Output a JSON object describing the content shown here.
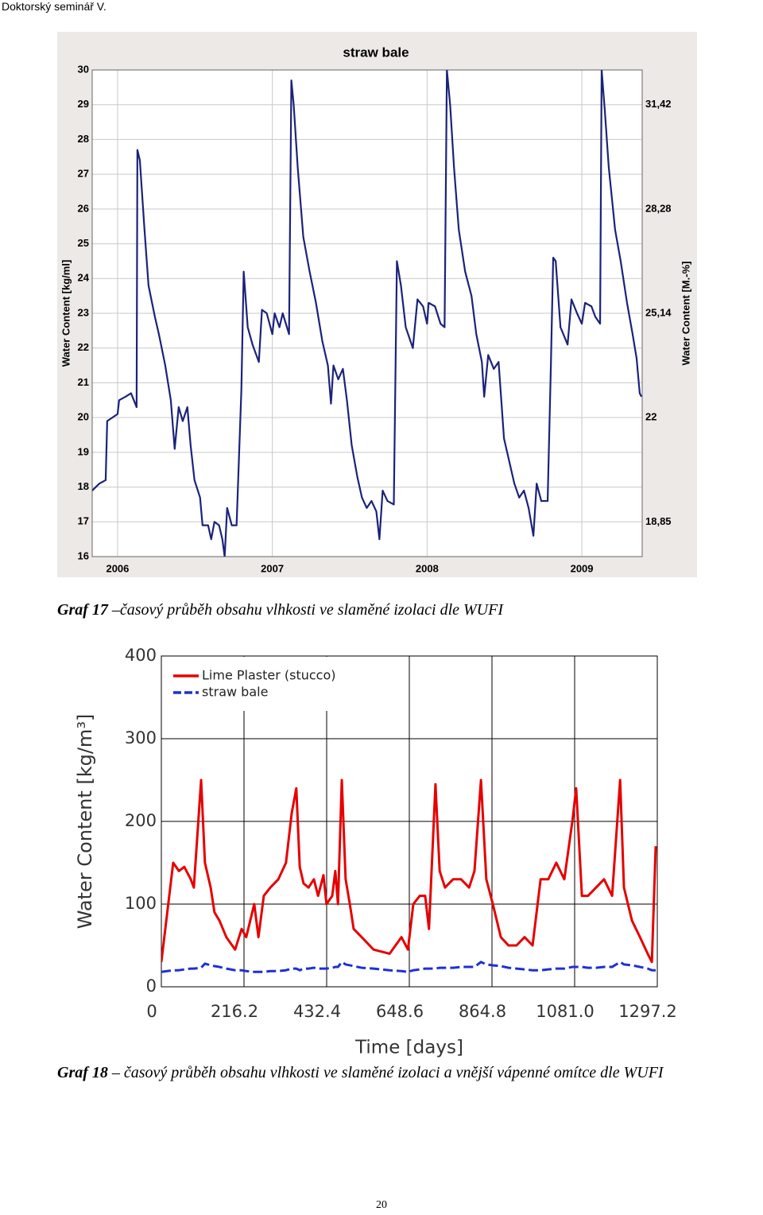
{
  "header": "Doktorský seminář V.",
  "chart_data": [
    {
      "type": "line",
      "title": "straw bale",
      "y_label": "Water Content [kg/ml]",
      "y2_label": "Water Content [M.-%]",
      "x": [
        2005.836,
        2005.882,
        2005.923,
        2005.933,
        2006.0,
        2006.01,
        2006.051,
        2006.087,
        2006.123,
        2006.128,
        2006.144,
        2006.174,
        2006.2,
        2006.241,
        2006.267,
        2006.308,
        2006.344,
        2006.369,
        2006.395,
        2006.421,
        2006.451,
        2006.472,
        2006.497,
        2006.533,
        2006.549,
        2006.585,
        2006.605,
        2006.626,
        2006.656,
        2006.677,
        2006.692,
        2006.708,
        2006.738,
        2006.769,
        2006.8,
        2006.815,
        2006.841,
        2006.872,
        2006.913,
        2006.933,
        2006.964,
        2007.0,
        2007.015,
        2007.046,
        2007.067,
        2007.108,
        2007.123,
        2007.138,
        2007.164,
        2007.2,
        2007.241,
        2007.282,
        2007.323,
        2007.359,
        2007.379,
        2007.395,
        2007.426,
        2007.456,
        2007.482,
        2007.513,
        2007.549,
        2007.579,
        2007.61,
        2007.641,
        2007.672,
        2007.692,
        2007.713,
        2007.744,
        2007.785,
        2007.805,
        2007.831,
        2007.862,
        2007.908,
        2007.938,
        2007.974,
        2008.0,
        2008.01,
        2008.051,
        2008.087,
        2008.113,
        2008.128,
        2008.149,
        2008.174,
        2008.205,
        2008.246,
        2008.287,
        2008.318,
        2008.354,
        2008.369,
        2008.395,
        2008.431,
        2008.462,
        2008.497,
        2008.533,
        2008.564,
        2008.595,
        2008.626,
        2008.656,
        2008.687,
        2008.708,
        2008.738,
        2008.779,
        2008.8,
        2008.815,
        2008.831,
        2008.862,
        2008.908,
        2008.933,
        2008.969,
        2009.0,
        2009.021,
        2009.062,
        2009.087,
        2009.118,
        2009.128,
        2009.149,
        2009.174,
        2009.215,
        2009.251,
        2009.292,
        2009.328,
        2009.354,
        2009.374,
        2009.385
      ],
      "series": [
        {
          "color": "#1b237a",
          "line_style": "solid",
          "values": [
            17.9,
            18.1,
            18.2,
            19.9,
            20.1,
            20.5,
            20.6,
            20.7,
            20.3,
            27.7,
            27.4,
            25.4,
            23.8,
            22.9,
            22.4,
            21.5,
            20.5,
            19.1,
            20.3,
            19.9,
            20.3,
            19.2,
            18.2,
            17.7,
            16.9,
            16.9,
            16.5,
            17.0,
            16.9,
            16.5,
            16.0,
            17.4,
            16.9,
            16.9,
            20.8,
            24.2,
            22.6,
            22.1,
            21.6,
            23.1,
            23.0,
            22.4,
            23.0,
            22.6,
            23.0,
            22.4,
            29.7,
            29.0,
            27.2,
            25.2,
            24.2,
            23.3,
            22.2,
            21.5,
            20.4,
            21.5,
            21.1,
            21.4,
            20.5,
            19.2,
            18.3,
            17.7,
            17.4,
            17.6,
            17.3,
            16.5,
            17.9,
            17.6,
            17.5,
            24.5,
            23.8,
            22.6,
            22.0,
            23.4,
            23.2,
            22.7,
            23.3,
            23.2,
            22.7,
            22.6,
            30.0,
            29.0,
            27.2,
            25.4,
            24.2,
            23.5,
            22.4,
            21.6,
            20.6,
            21.8,
            21.4,
            21.6,
            19.4,
            18.7,
            18.1,
            17.7,
            17.9,
            17.4,
            16.6,
            18.1,
            17.6,
            17.6,
            21.5,
            24.6,
            24.5,
            22.6,
            22.1,
            23.4,
            23.0,
            22.7,
            23.3,
            23.2,
            22.9,
            22.7,
            30.0,
            28.8,
            27.2,
            25.4,
            24.5,
            23.3,
            22.4,
            21.7,
            20.7,
            20.6
          ]
        }
      ],
      "xlim": [
        2005.836,
        2009.39
      ],
      "xticks": [
        2006,
        2007,
        2008,
        2009
      ],
      "ylim": [
        16,
        30
      ],
      "yticks": [
        16,
        17,
        18,
        19,
        20,
        21,
        22,
        23,
        24,
        25,
        26,
        27,
        28,
        29,
        30
      ],
      "y2lim": [
        17.813,
        32.467
      ],
      "y2ticks": [
        {
          "value": 18.85,
          "label": "18,85"
        },
        22,
        {
          "value": 25.14,
          "label": "25,14"
        },
        {
          "value": 28.28,
          "label": "28,28"
        },
        {
          "value": 31.42,
          "label": "31,42"
        }
      ],
      "grid": true
    },
    {
      "type": "line",
      "x_label": "Time [days]",
      "y_label": "Water Content [kg/m³]",
      "legend": "upper left",
      "x": [
        0,
        31,
        46,
        60,
        77,
        85,
        104,
        114,
        129,
        139,
        152,
        170,
        193,
        210,
        222,
        243,
        254,
        268,
        285,
        306,
        326,
        341,
        353,
        362,
        372,
        385,
        399,
        410,
        424,
        432,
        447,
        455,
        462,
        472,
        482,
        493,
        503,
        524,
        555,
        597,
        628,
        645,
        659,
        676,
        690,
        700,
        717,
        728,
        742,
        763,
        784,
        805,
        819,
        836,
        850,
        867,
        888,
        908,
        929,
        950,
        971,
        992,
        1012,
        1033,
        1054,
        1075,
        1085,
        1100,
        1116,
        1137,
        1158,
        1179,
        1200,
        1210,
        1231,
        1252,
        1272,
        1283,
        1293
      ],
      "series": [
        {
          "name": "Lime Plaster (stucco)",
          "color": "#e60000",
          "line_style": "solid",
          "values": [
            30,
            150,
            140,
            145,
            130,
            120,
            250,
            150,
            120,
            90,
            80,
            60,
            45,
            70,
            60,
            100,
            60,
            110,
            120,
            130,
            150,
            210,
            240,
            145,
            125,
            120,
            130,
            110,
            135,
            100,
            110,
            140,
            100,
            250,
            130,
            100,
            70,
            60,
            45,
            40,
            60,
            45,
            100,
            110,
            110,
            70,
            245,
            140,
            120,
            130,
            130,
            120,
            140,
            250,
            130,
            100,
            60,
            50,
            50,
            60,
            50,
            130,
            130,
            150,
            130,
            200,
            240,
            110,
            110,
            120,
            130,
            110,
            250,
            120,
            80,
            60,
            40,
            30,
            170
          ]
        },
        {
          "name": "straw bale",
          "color": "#1f2fd6",
          "line_style": "dashed",
          "values": [
            18,
            20,
            20,
            21,
            22,
            22,
            23,
            28,
            26,
            25,
            24,
            22,
            20,
            20,
            19,
            18,
            18,
            18,
            19,
            19,
            20,
            22,
            22,
            20,
            22,
            22,
            23,
            22,
            22,
            22,
            23,
            24,
            24,
            30,
            27,
            26,
            25,
            23,
            22,
            20,
            19,
            18,
            20,
            21,
            22,
            22,
            22,
            23,
            23,
            23,
            24,
            24,
            24,
            30,
            27,
            26,
            25,
            23,
            22,
            21,
            20,
            20,
            21,
            22,
            22,
            24,
            24,
            24,
            23,
            23,
            24,
            24,
            30,
            27,
            26,
            24,
            22,
            20,
            20
          ]
        }
      ],
      "xlim": [
        0,
        1297.2
      ],
      "xticks": [
        0,
        216.2,
        432.4,
        648.6,
        864.8,
        {
          "value": 1081,
          "label": "1081.0"
        },
        1297.2
      ],
      "ylim": [
        0,
        400
      ],
      "yticks": [
        0,
        100,
        200,
        300,
        400
      ],
      "grid": true
    }
  ],
  "captions": [
    {
      "label": "Graf 17",
      "text": "–časový průběh obsahu vlhkosti ve slaměné izolaci dle WUFI"
    },
    {
      "label": "Graf 18",
      "text": "– časový průběh obsahu vlhkosti ve slaměné izolaci a vnější vápenné omítce dle WUFI"
    }
  ],
  "page_number": "20"
}
